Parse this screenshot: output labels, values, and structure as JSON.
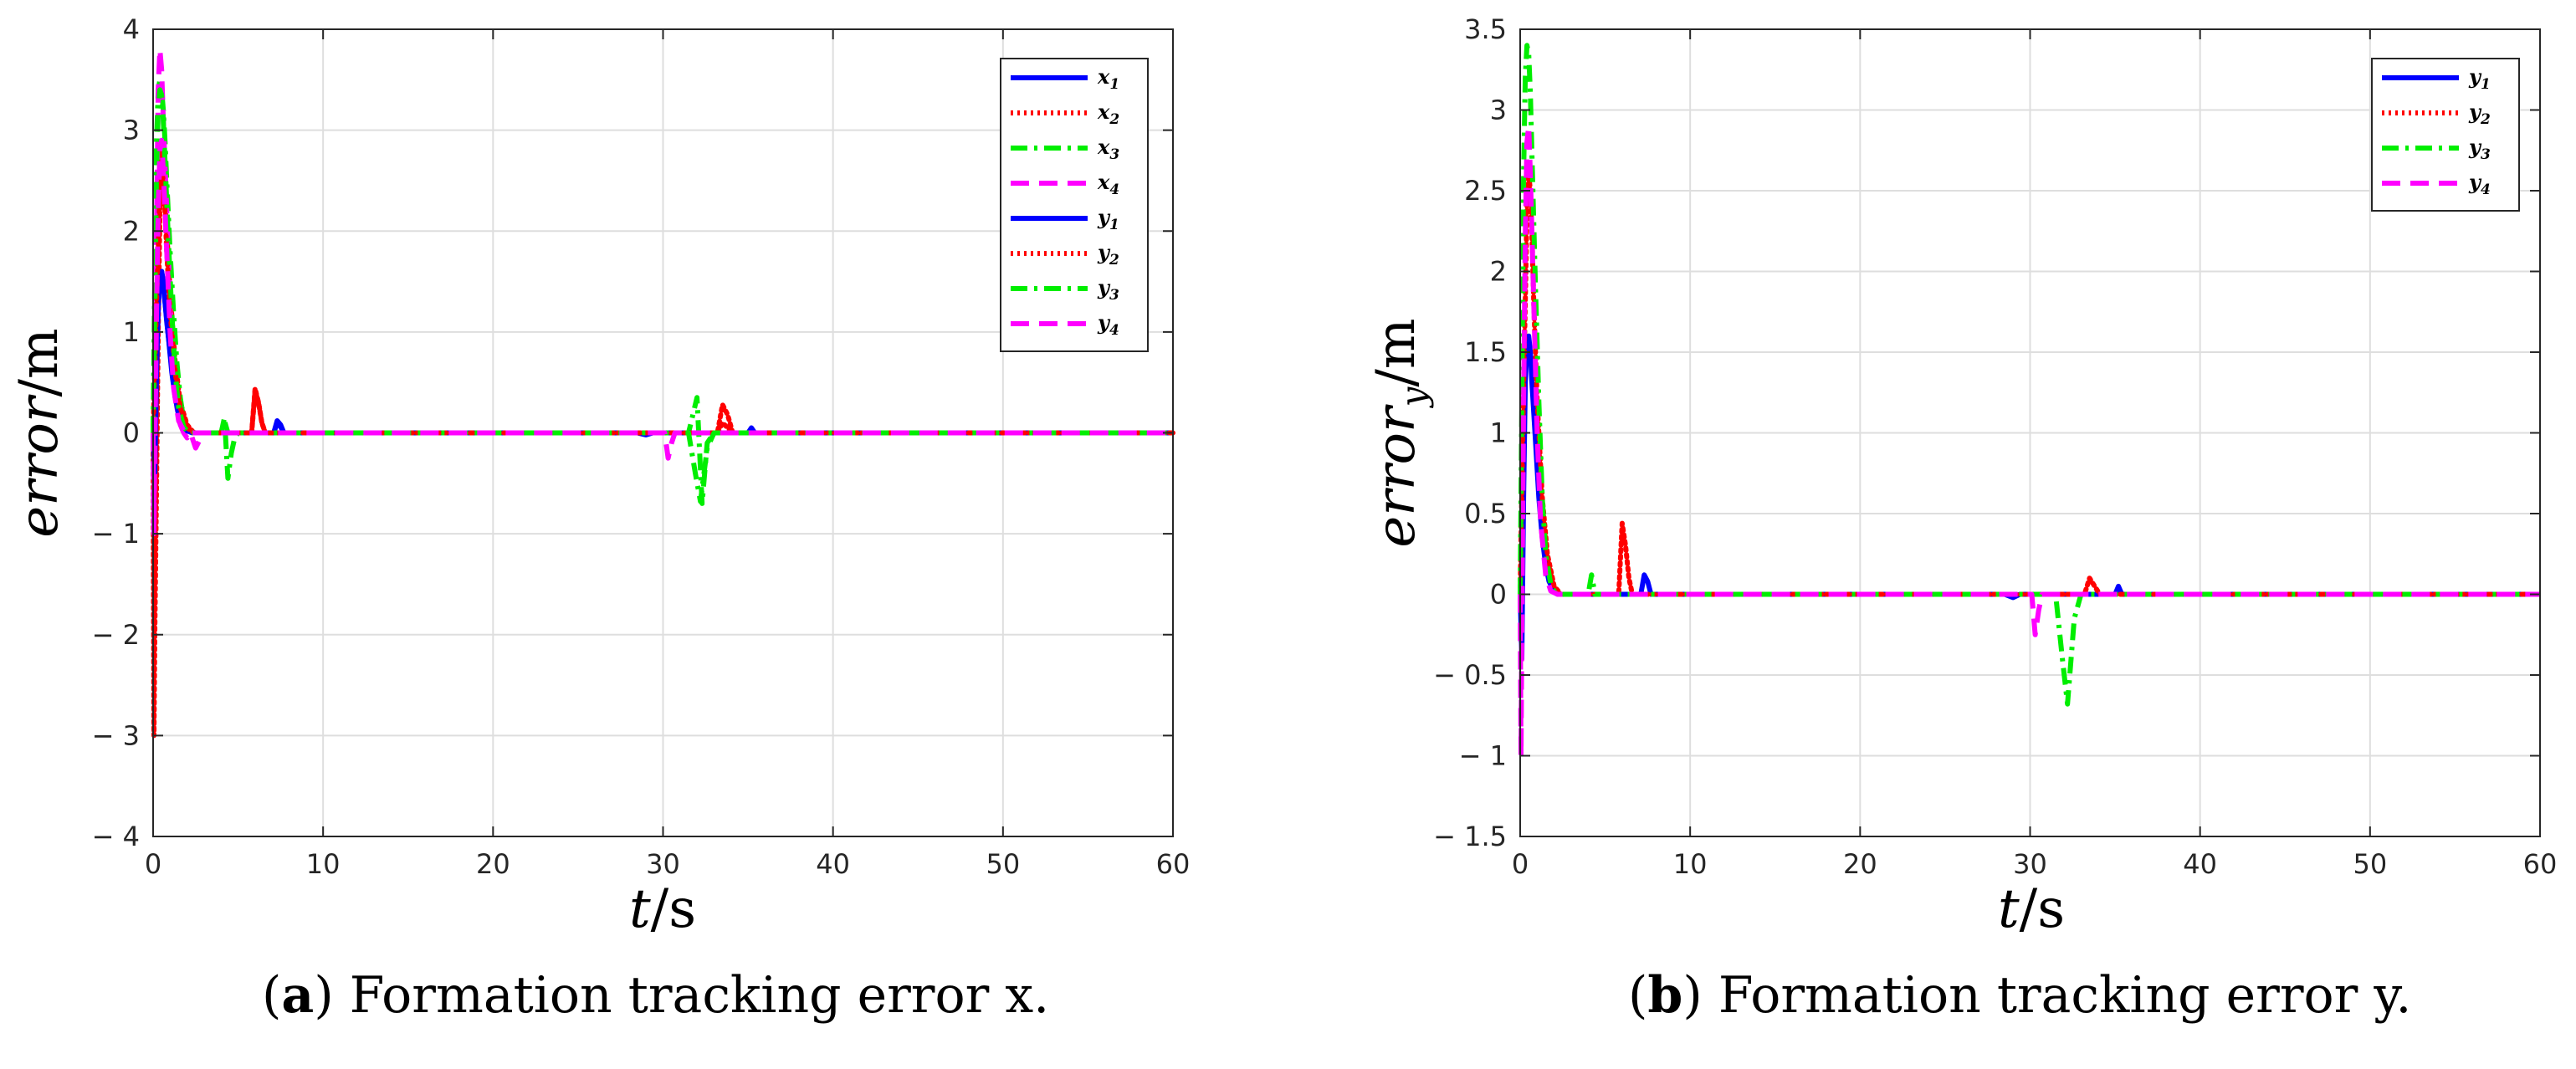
{
  "chart_data": [
    {
      "type": "line",
      "id": "a",
      "caption_label": "a",
      "caption_text": "Formation tracking error x.",
      "xlabel_var": "t",
      "xlabel_unit": "/s",
      "ylabel_var": "error",
      "ylabel_sub": "",
      "ylabel_unit": "/m",
      "xlim": [
        0,
        60
      ],
      "ylim": [
        -4,
        4
      ],
      "xticks": [
        0,
        10,
        20,
        30,
        40,
        50,
        60
      ],
      "yticks": [
        -4,
        -3,
        -2,
        -1,
        0,
        1,
        2,
        3,
        4
      ],
      "ytick_labels": [
        "− 4",
        "− 3",
        "− 2",
        "− 1",
        "0",
        "1",
        "2",
        "3",
        "4"
      ],
      "grid": true,
      "legend_position": "top-right",
      "series": [
        {
          "name": "x",
          "sub": "1",
          "color": "#0000ff",
          "style": "solid",
          "x": [
            0,
            0.1,
            0.2,
            0.3,
            0.4,
            0.5,
            0.6,
            0.7,
            0.8,
            1.0,
            1.2,
            1.4,
            1.6,
            1.8,
            2.0,
            2.3,
            7.1,
            7.3,
            7.5,
            7.7,
            60
          ],
          "y": [
            0,
            -0.6,
            0.5,
            1.2,
            1.5,
            1.6,
            1.5,
            1.3,
            1.1,
            0.8,
            0.5,
            0.3,
            0.15,
            0.06,
            0.02,
            0,
            0,
            0.1,
            0.06,
            0,
            0
          ]
        },
        {
          "name": "x",
          "sub": "2",
          "color": "#ff0000",
          "style": "dotted",
          "x": [
            0,
            0.05,
            0.1,
            0.2,
            0.3,
            0.4,
            0.5,
            0.6,
            0.8,
            1.0,
            1.3,
            1.6,
            2.0,
            2.4,
            5.8,
            6.0,
            6.2,
            6.4,
            6.6,
            33.2,
            33.5,
            33.8,
            34.1,
            60
          ],
          "y": [
            0,
            -3.0,
            -2.0,
            -0.5,
            1.0,
            2.2,
            2.8,
            2.6,
            2.0,
            1.4,
            0.7,
            0.3,
            0.08,
            0,
            0,
            0.42,
            0.3,
            0.1,
            0,
            0,
            0.28,
            0.18,
            0,
            0
          ]
        },
        {
          "name": "x",
          "sub": "3",
          "color": "#00ee00",
          "style": "dashdot",
          "x": [
            0,
            0.1,
            0.2,
            0.3,
            0.4,
            0.5,
            0.6,
            0.7,
            0.8,
            1.0,
            1.2,
            1.4,
            1.6,
            1.8,
            2.1,
            2.5,
            4.0,
            4.2,
            4.4,
            4.6,
            4.8,
            5.0,
            31.5,
            32.0,
            32.3,
            32.6,
            33.0,
            60
          ],
          "y": [
            0,
            1.5,
            2.9,
            3.4,
            3.5,
            3.4,
            3.2,
            2.9,
            2.5,
            1.8,
            1.2,
            0.7,
            0.35,
            0.12,
            0.02,
            0,
            0,
            0.15,
            -0.45,
            -0.2,
            -0.05,
            0,
            0,
            0.35,
            -0.7,
            -0.1,
            0,
            0
          ]
        },
        {
          "name": "x",
          "sub": "4",
          "color": "#ff00ff",
          "style": "dashed",
          "x": [
            0,
            0.05,
            0.1,
            0.2,
            0.3,
            0.4,
            0.5,
            0.6,
            0.8,
            1.0,
            1.2,
            1.4,
            1.6,
            1.8,
            2.0,
            2.2,
            2.5,
            2.8,
            3.0,
            60
          ],
          "y": [
            0,
            -0.9,
            0.2,
            2.0,
            3.4,
            3.8,
            3.6,
            3.1,
            2.2,
            1.3,
            0.6,
            0.25,
            0.08,
            0,
            -0.05,
            0,
            -0.15,
            -0.05,
            0,
            0
          ]
        },
        {
          "name": "y",
          "sub": "1",
          "color": "#0000ff",
          "style": "solid",
          "x": [
            0,
            0.1,
            0.2,
            0.3,
            0.4,
            0.5,
            0.6,
            0.7,
            0.9,
            1.1,
            1.3,
            1.5,
            1.7,
            2.0,
            2.4,
            7.1,
            7.3,
            7.5,
            7.7,
            28.5,
            29.0,
            29.4,
            35.0,
            35.2,
            35.4,
            60
          ],
          "y": [
            0,
            -0.4,
            0.6,
            1.3,
            1.55,
            1.6,
            1.5,
            1.3,
            0.95,
            0.6,
            0.35,
            0.18,
            0.08,
            0.02,
            0,
            0,
            0.12,
            0.08,
            0,
            0,
            -0.02,
            0,
            0,
            0.05,
            0,
            0
          ]
        },
        {
          "name": "y",
          "sub": "2",
          "color": "#ff0000",
          "style": "dotted",
          "x": [
            0,
            0.2,
            0.3,
            0.4,
            0.5,
            0.6,
            0.7,
            0.8,
            1.0,
            1.3,
            1.6,
            2.0,
            2.4,
            5.8,
            6.0,
            6.2,
            6.4,
            6.6,
            33.2,
            33.5,
            33.8,
            34.1,
            60
          ],
          "y": [
            0,
            1.3,
            1.8,
            2.4,
            2.6,
            2.5,
            2.2,
            1.8,
            1.2,
            0.6,
            0.25,
            0.05,
            0,
            0,
            0.44,
            0.3,
            0.1,
            0,
            0,
            0.1,
            0.05,
            0,
            0
          ]
        },
        {
          "name": "y",
          "sub": "3",
          "color": "#00ee00",
          "style": "dashdot",
          "x": [
            0,
            0.1,
            0.2,
            0.3,
            0.4,
            0.5,
            0.6,
            0.7,
            0.9,
            1.1,
            1.3,
            1.5,
            1.8,
            2.1,
            2.5,
            4.0,
            4.2,
            4.4,
            31.5,
            31.9,
            32.2,
            32.6,
            33.0,
            60
          ],
          "y": [
            0,
            1.2,
            2.6,
            3.2,
            3.4,
            3.35,
            3.1,
            2.7,
            1.9,
            1.2,
            0.6,
            0.25,
            0.06,
            0,
            0,
            0,
            0.12,
            0,
            0,
            -0.4,
            -0.68,
            -0.15,
            0,
            0
          ]
        },
        {
          "name": "y",
          "sub": "4",
          "color": "#ff00ff",
          "style": "dashed",
          "x": [
            0,
            0.05,
            0.1,
            0.2,
            0.3,
            0.4,
            0.5,
            0.6,
            0.8,
            1.0,
            1.2,
            1.5,
            1.8,
            2.2,
            30.1,
            30.3,
            30.5,
            30.7,
            60
          ],
          "y": [
            0,
            -1.0,
            -0.2,
            1.2,
            2.2,
            2.8,
            2.9,
            2.6,
            1.8,
            1.0,
            0.45,
            0.12,
            0.02,
            0,
            0,
            -0.25,
            -0.1,
            0,
            0
          ]
        }
      ]
    },
    {
      "type": "line",
      "id": "b",
      "caption_label": "b",
      "caption_text": "Formation tracking error y.",
      "xlabel_var": "t",
      "xlabel_unit": "/s",
      "ylabel_var": "error",
      "ylabel_sub": "y",
      "ylabel_unit": "/m",
      "xlim": [
        0,
        60
      ],
      "ylim": [
        -1.5,
        3.5
      ],
      "xticks": [
        0,
        10,
        20,
        30,
        40,
        50,
        60
      ],
      "yticks": [
        -1.5,
        -1,
        -0.5,
        0,
        0.5,
        1,
        1.5,
        2,
        2.5,
        3,
        3.5
      ],
      "ytick_labels": [
        "− 1.5",
        "− 1",
        "− 0.5",
        "0",
        "0.5",
        "1",
        "1.5",
        "2",
        "2.5",
        "3",
        "3.5"
      ],
      "grid": true,
      "legend_position": "top-right",
      "series": [
        {
          "name": "y",
          "sub": "1",
          "color": "#0000ff",
          "style": "solid",
          "x": [
            0,
            0.1,
            0.2,
            0.3,
            0.4,
            0.5,
            0.6,
            0.7,
            0.9,
            1.1,
            1.3,
            1.5,
            1.7,
            2.0,
            2.4,
            7.1,
            7.3,
            7.5,
            7.7,
            28.5,
            29.0,
            29.4,
            35.0,
            35.2,
            35.4,
            60
          ],
          "y": [
            0,
            -0.4,
            0.6,
            1.3,
            1.55,
            1.6,
            1.5,
            1.3,
            0.95,
            0.6,
            0.35,
            0.18,
            0.08,
            0.02,
            0,
            0,
            0.12,
            0.08,
            0,
            0,
            -0.02,
            0,
            0,
            0.05,
            0,
            0
          ]
        },
        {
          "name": "y",
          "sub": "2",
          "color": "#ff0000",
          "style": "dotted",
          "x": [
            0,
            0.2,
            0.3,
            0.4,
            0.5,
            0.6,
            0.7,
            0.8,
            1.0,
            1.3,
            1.6,
            2.0,
            2.4,
            5.8,
            6.0,
            6.2,
            6.4,
            6.6,
            33.2,
            33.5,
            33.8,
            34.1,
            60
          ],
          "y": [
            0,
            1.3,
            1.8,
            2.4,
            2.6,
            2.5,
            2.2,
            1.8,
            1.2,
            0.6,
            0.25,
            0.05,
            0,
            0,
            0.44,
            0.3,
            0.1,
            0,
            0,
            0.1,
            0.05,
            0,
            0
          ]
        },
        {
          "name": "y",
          "sub": "3",
          "color": "#00ee00",
          "style": "dashdot",
          "x": [
            0,
            0.1,
            0.2,
            0.3,
            0.4,
            0.5,
            0.6,
            0.7,
            0.9,
            1.1,
            1.3,
            1.5,
            1.8,
            2.1,
            2.5,
            4.0,
            4.2,
            4.4,
            31.5,
            31.9,
            32.2,
            32.6,
            33.0,
            60
          ],
          "y": [
            0,
            1.2,
            2.6,
            3.2,
            3.4,
            3.35,
            3.1,
            2.7,
            1.9,
            1.2,
            0.6,
            0.25,
            0.06,
            0,
            0,
            0,
            0.12,
            0,
            0,
            -0.4,
            -0.68,
            -0.15,
            0,
            0
          ]
        },
        {
          "name": "y",
          "sub": "4",
          "color": "#ff00ff",
          "style": "dashed",
          "x": [
            0,
            0.05,
            0.1,
            0.2,
            0.3,
            0.4,
            0.5,
            0.6,
            0.8,
            1.0,
            1.2,
            1.5,
            1.8,
            2.2,
            30.1,
            30.3,
            30.5,
            30.7,
            60
          ],
          "y": [
            0,
            -1.0,
            -0.2,
            1.2,
            2.2,
            2.8,
            2.9,
            2.6,
            1.8,
            1.0,
            0.45,
            0.12,
            0.02,
            0,
            0,
            -0.25,
            -0.1,
            0,
            0
          ]
        }
      ]
    }
  ]
}
